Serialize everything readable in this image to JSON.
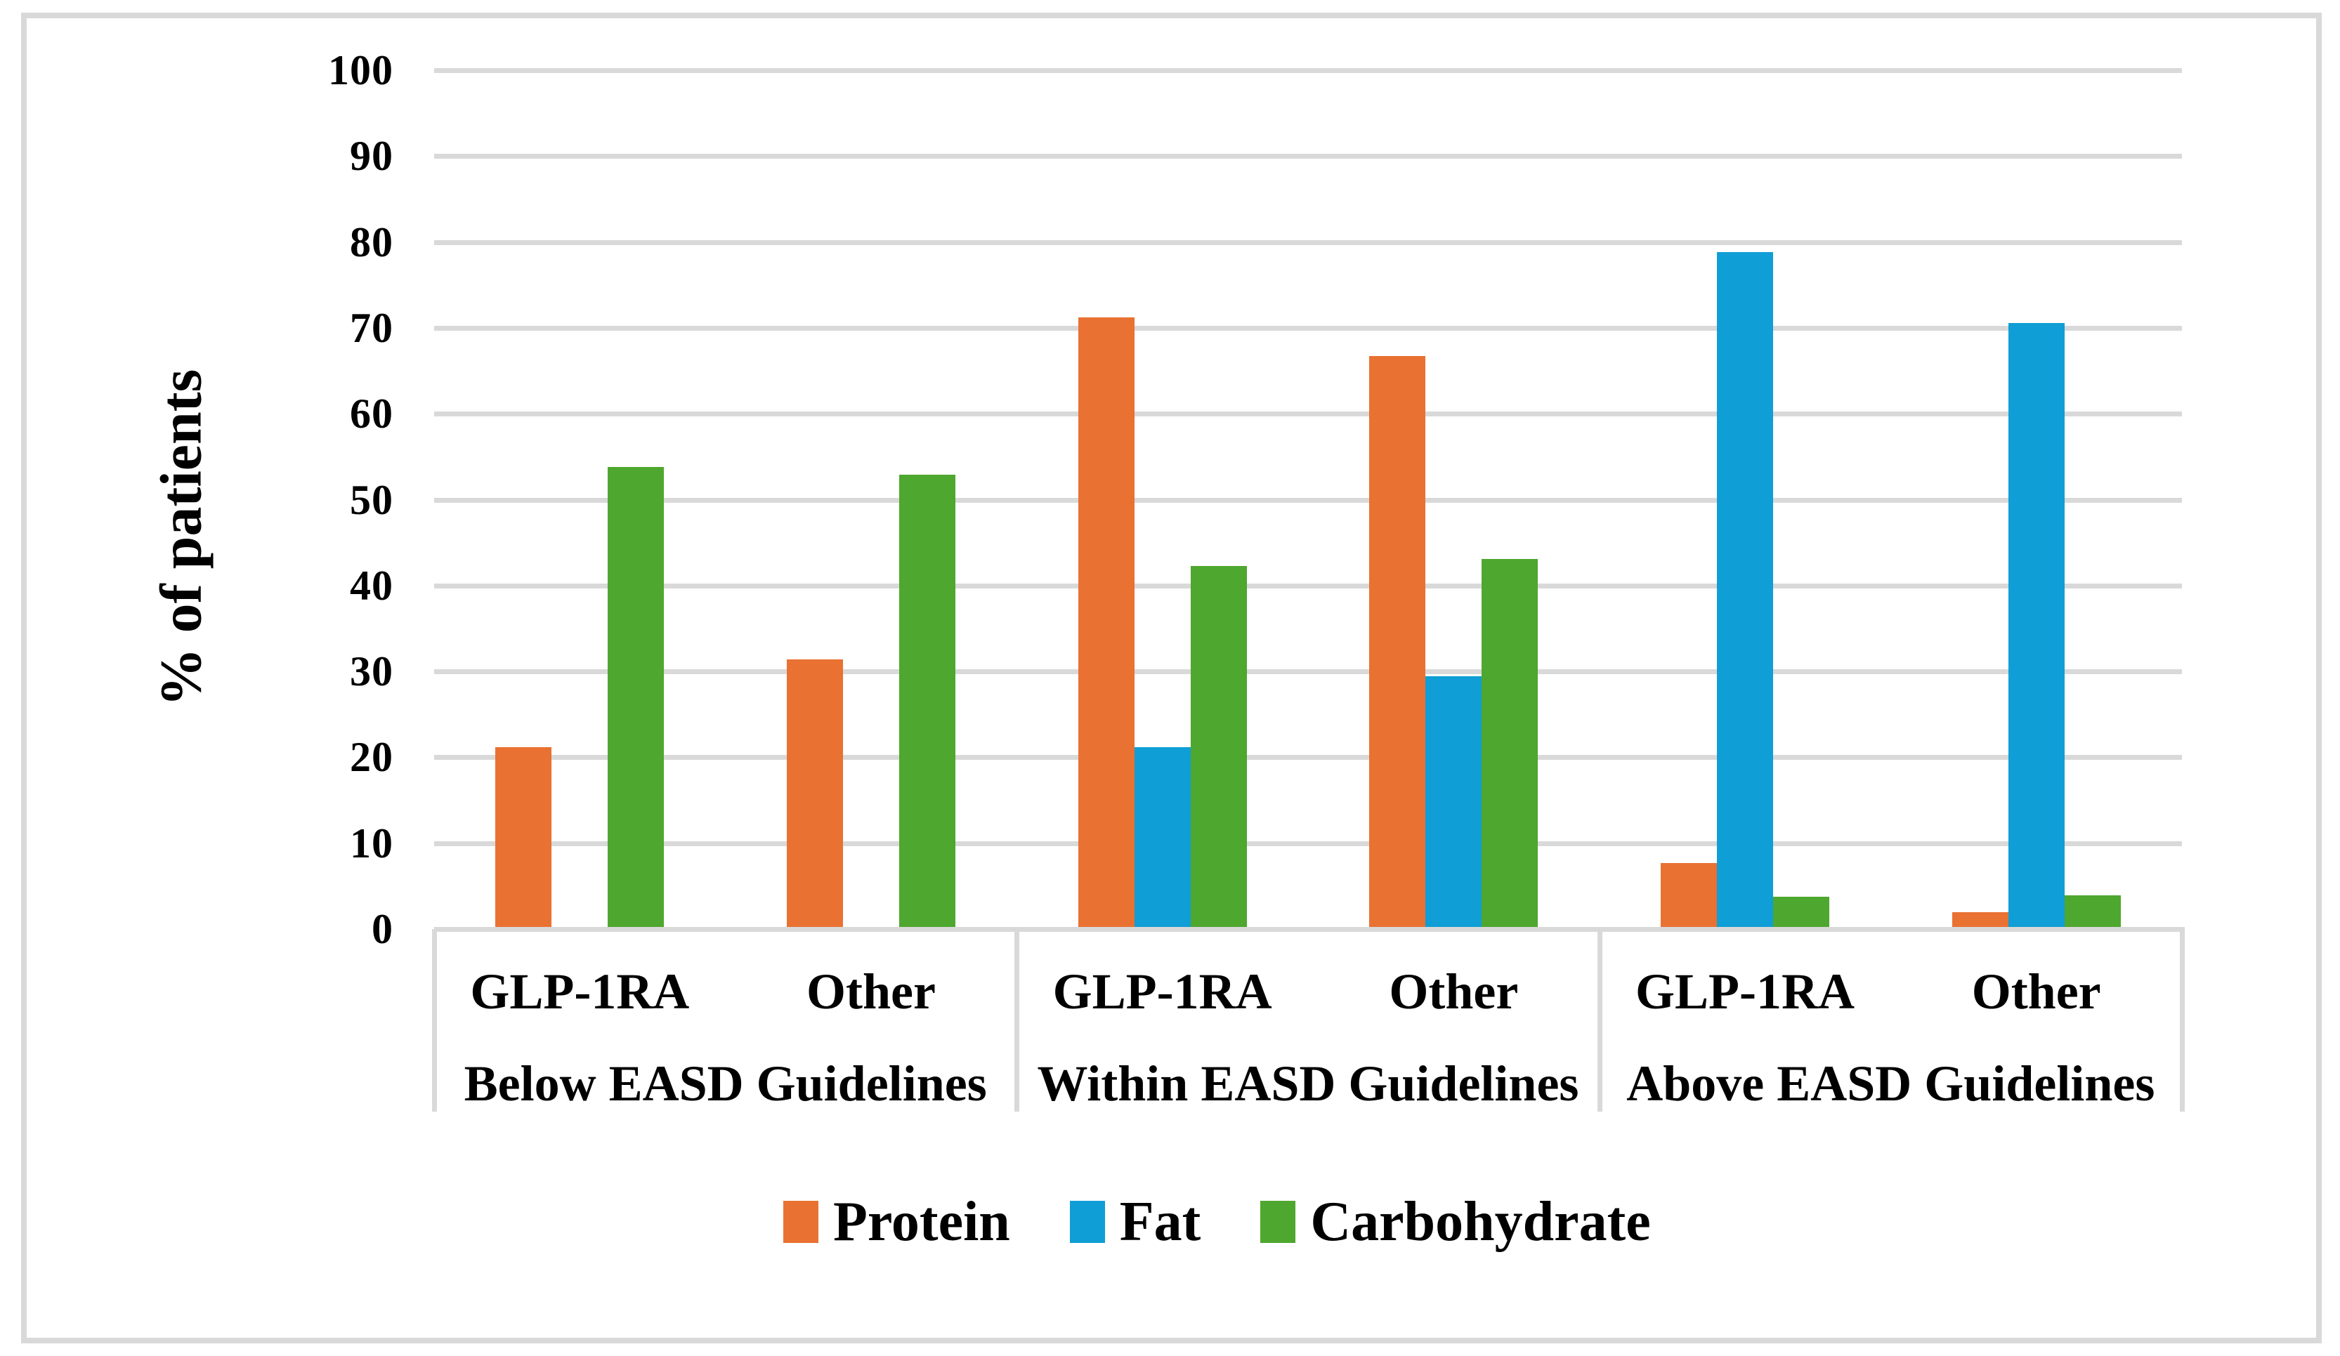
{
  "figure": {
    "background_color": "#FFFFFF",
    "border_color": "#D9D9D9"
  },
  "style": {
    "gridline_color": "#D9D9D9",
    "axis_line_color": "#D9D9D9",
    "separator_color": "#D9D9D9"
  },
  "chart_data": {
    "type": "bar",
    "title": "",
    "xlabel": "",
    "ylabel": "% of patients",
    "ylim": [
      0,
      100
    ],
    "yticks": [
      0,
      10,
      20,
      30,
      40,
      50,
      60,
      70,
      80,
      90,
      100
    ],
    "grid": true,
    "legend_position": "bottom",
    "group_labels": [
      "Below EASD Guidelines",
      "Within EASD Guidelines",
      "Above EASD Guidelines"
    ],
    "categories": [
      "GLP-1RA",
      "Other",
      "GLP-1RA",
      "Other",
      "GLP-1RA",
      "Other"
    ],
    "series": [
      {
        "name": "Protein",
        "color": "#E97132",
        "values": [
          21.2,
          31.4,
          71.2,
          66.7,
          7.7,
          2.0
        ]
      },
      {
        "name": "Fat",
        "color": "#0F9ED5",
        "values": [
          0,
          0,
          21.2,
          29.4,
          78.8,
          70.6
        ]
      },
      {
        "name": "Carbohydrate",
        "color": "#4EA72E",
        "values": [
          53.8,
          52.9,
          42.3,
          43.1,
          3.8,
          3.9
        ]
      }
    ]
  }
}
